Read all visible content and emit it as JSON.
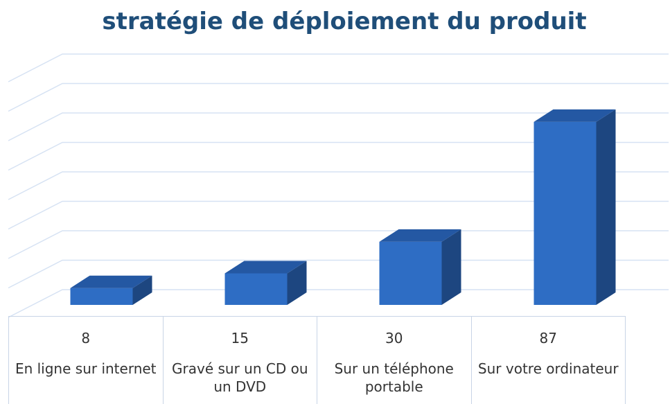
{
  "chart_data": {
    "type": "bar",
    "title": "stratégie de déploiement du produit",
    "categories": [
      "En ligne sur internet",
      "Gravé sur un CD ou un DVD",
      "Sur un téléphone portable",
      "Sur votre ordinateur"
    ],
    "values": [
      8,
      15,
      30,
      87
    ],
    "color": "#2e6dc4",
    "ylim": [
      0,
      112
    ]
  }
}
